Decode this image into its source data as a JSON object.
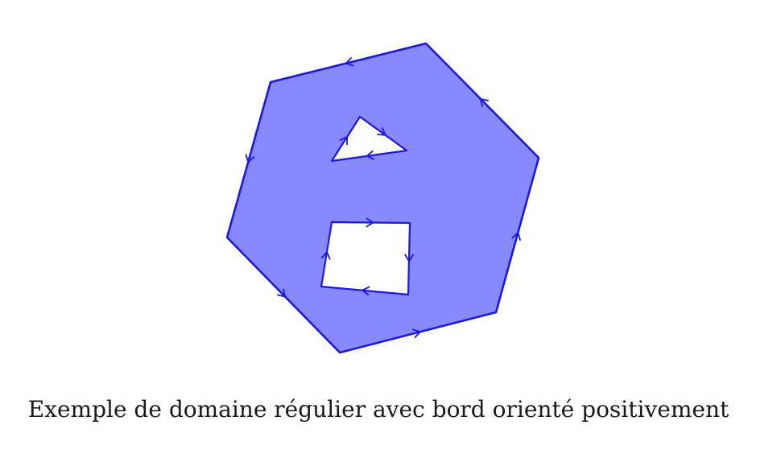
{
  "caption": "Exemple de domaine régulier avec bord orienté positivement",
  "colors": {
    "fill": "#8888ff",
    "stroke": "#1a1adc",
    "hole": "#ffffff",
    "text": "#1a1a1a"
  },
  "shapes": [
    {
      "name": "outer-hexagon",
      "role": "domain",
      "sides": 6,
      "orientation": "counterclockwise"
    },
    {
      "name": "triangle-hole",
      "role": "hole",
      "sides": 3,
      "orientation": "clockwise"
    },
    {
      "name": "quadrilateral-hole",
      "role": "hole",
      "sides": 4,
      "orientation": "clockwise"
    }
  ]
}
